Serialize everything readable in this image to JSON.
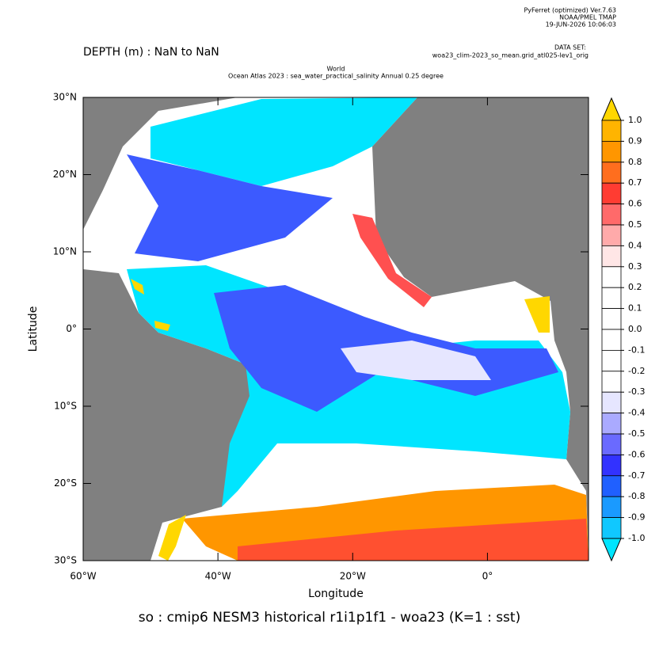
{
  "header": {
    "software": "PyFerret (optimized) Ver.7.63",
    "org": "NOAA/PMEL TMAP",
    "date": "19-JUN-2026 10:06:03",
    "dataset_label": "DATA SET:",
    "dataset": "woa23_clim-2023_so_mean.grid_atl025-lev1_orig"
  },
  "depth": "DEPTH (m) : NaN to NaN",
  "title_line1": "World",
  "title_line2": "Ocean Atlas 2023 : sea_water_practical_salinity Annual  0.25 degree",
  "chart_data": {
    "type": "heatmap",
    "xlabel": "Longitude",
    "ylabel": "Latitude",
    "footer": "so : cmip6 NESM3 historical r1i1p1f1 - woa23  (K=1 : sst)",
    "xlim": [
      -60,
      15
    ],
    "ylim": [
      -30,
      30
    ],
    "xticks": [
      {
        "value": -60,
        "label": "60°W"
      },
      {
        "value": -40,
        "label": "40°W"
      },
      {
        "value": -20,
        "label": "20°W"
      },
      {
        "value": 0,
        "label": "0°"
      }
    ],
    "yticks": [
      {
        "value": 30,
        "label": "30°N"
      },
      {
        "value": 20,
        "label": "20°N"
      },
      {
        "value": 10,
        "label": "10°N"
      },
      {
        "value": 0,
        "label": "0°"
      },
      {
        "value": -10,
        "label": "10°S"
      },
      {
        "value": -20,
        "label": "20°S"
      },
      {
        "value": -30,
        "label": "30°S"
      }
    ],
    "colorbar": {
      "levels": [
        {
          "value": 1.0,
          "label": "1.0"
        },
        {
          "value": 0.9,
          "label": "0.9"
        },
        {
          "value": 0.8,
          "label": "0.8"
        },
        {
          "value": 0.7,
          "label": "0.7"
        },
        {
          "value": 0.6,
          "label": "0.6"
        },
        {
          "value": 0.5,
          "label": "0.5"
        },
        {
          "value": 0.4,
          "label": "0.4"
        },
        {
          "value": 0.3,
          "label": "0.3"
        },
        {
          "value": 0.2,
          "label": "0.2"
        },
        {
          "value": 0.1,
          "label": "0.1"
        },
        {
          "value": 0.0,
          "label": "0.0"
        },
        {
          "value": -0.1,
          "label": "-0.1"
        },
        {
          "value": -0.2,
          "label": "-0.2"
        },
        {
          "value": -0.3,
          "label": "-0.3"
        },
        {
          "value": -0.4,
          "label": "-0.4"
        },
        {
          "value": -0.5,
          "label": "-0.5"
        },
        {
          "value": -0.6,
          "label": "-0.6"
        },
        {
          "value": -0.7,
          "label": "-0.7"
        },
        {
          "value": -0.8,
          "label": "-0.8"
        },
        {
          "value": -0.9,
          "label": "-0.9"
        },
        {
          "value": -1.0,
          "label": "-1.0"
        }
      ],
      "colors": [
        "#ffd700",
        "#ffb400",
        "#ff9600",
        "#ff6e1e",
        "#ff3c32",
        "#ff6a6a",
        "#ffaaaa",
        "#ffe6e6",
        "#ffffff",
        "#ffffff",
        "#ffffff",
        "#ffffff",
        "#ffffff",
        "#ffffff",
        "#e6e6ff",
        "#aaaaff",
        "#6a6aff",
        "#3232ff",
        "#2060ff",
        "#1a9aff",
        "#10c8ff",
        "#00e5ff"
      ]
    }
  }
}
